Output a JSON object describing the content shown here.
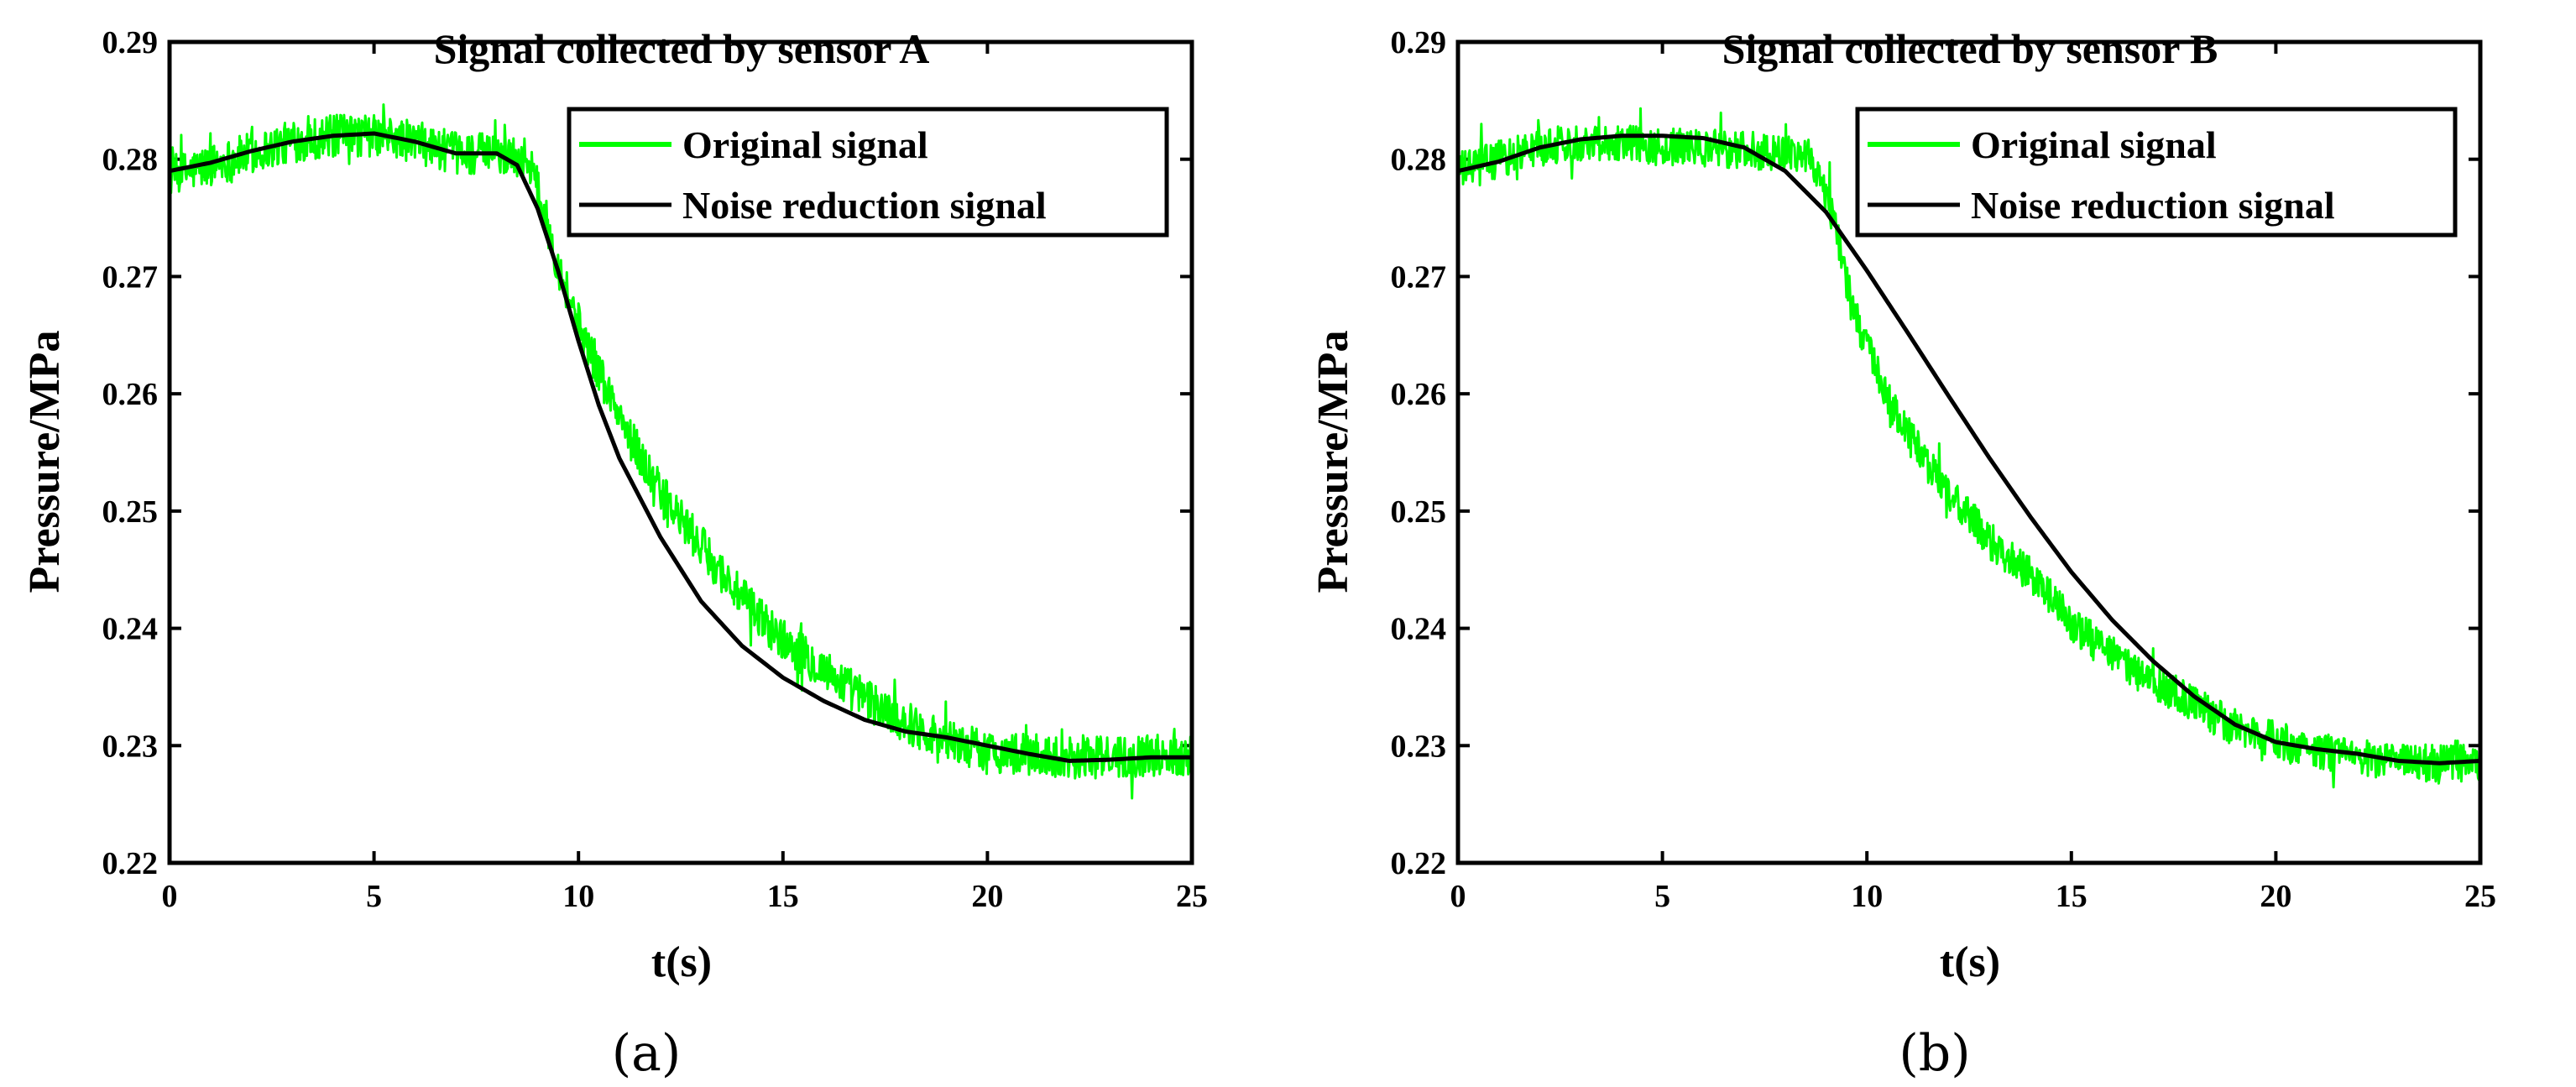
{
  "chart_data": [
    {
      "id": "a",
      "type": "line",
      "title": "Signal collected by sensor A",
      "xlabel": "t(s)",
      "ylabel": "Pressure/MPa",
      "panel_label": "(a)",
      "xlim": [
        0,
        25
      ],
      "ylim": [
        0.22,
        0.29
      ],
      "xticks": [
        0,
        5,
        10,
        15,
        20,
        25
      ],
      "xtick_labels": [
        "0",
        "5",
        "10",
        "15",
        "20",
        "25"
      ],
      "yticks": [
        0.22,
        0.23,
        0.24,
        0.25,
        0.26,
        0.27,
        0.28,
        0.29
      ],
      "ytick_labels": [
        "0.22",
        "0.23",
        "0.24",
        "0.25",
        "0.26",
        "0.27",
        "0.28",
        "0.29"
      ],
      "legend_position": "top-right",
      "series": [
        {
          "name": "Original signal",
          "color": "#00ff00",
          "style": "noisy",
          "noise_amplitude": 0.0018,
          "x": [
            0,
            1,
            2,
            3,
            4,
            5,
            6,
            7,
            8,
            8.8,
            9.5,
            10,
            10.5,
            11,
            12,
            13,
            14,
            15,
            16,
            17,
            18,
            19,
            20,
            21,
            22,
            23,
            24,
            25
          ],
          "y": [
            0.2785,
            0.2795,
            0.2805,
            0.2815,
            0.282,
            0.282,
            0.2815,
            0.2805,
            0.2805,
            0.28,
            0.271,
            0.266,
            0.262,
            0.258,
            0.2515,
            0.247,
            0.2425,
            0.239,
            0.2365,
            0.234,
            0.232,
            0.2305,
            0.2295,
            0.2292,
            0.229,
            0.229,
            0.2292,
            0.2292
          ]
        },
        {
          "name": "Noise reduction signal",
          "color": "#000000",
          "style": "smooth",
          "x": [
            0,
            1,
            2,
            3,
            4,
            5,
            6,
            7,
            8,
            8.5,
            9,
            9.5,
            10,
            10.5,
            11,
            12,
            13,
            14,
            15,
            16,
            17,
            18,
            19,
            20,
            21,
            22,
            23,
            24,
            25
          ],
          "y": [
            0.279,
            0.2797,
            0.2807,
            0.2815,
            0.282,
            0.2822,
            0.2815,
            0.2805,
            0.2805,
            0.2795,
            0.2758,
            0.2705,
            0.2645,
            0.259,
            0.2545,
            0.2478,
            0.2423,
            0.2385,
            0.2358,
            0.2338,
            0.2322,
            0.2312,
            0.2307,
            0.23,
            0.2293,
            0.2287,
            0.2288,
            0.229,
            0.229
          ]
        }
      ]
    },
    {
      "id": "b",
      "type": "line",
      "title": "Signal collected by sensor B",
      "xlabel": "t(s)",
      "ylabel": "Pressure/MPa",
      "panel_label": "(b)",
      "xlim": [
        0,
        25
      ],
      "ylim": [
        0.22,
        0.29
      ],
      "xticks": [
        0,
        5,
        10,
        15,
        20,
        25
      ],
      "xtick_labels": [
        "0",
        "5",
        "10",
        "15",
        "20",
        "25"
      ],
      "yticks": [
        0.22,
        0.23,
        0.24,
        0.25,
        0.26,
        0.27,
        0.28,
        0.29
      ],
      "ytick_labels": [
        "0.22",
        "0.23",
        "0.24",
        "0.25",
        "0.26",
        "0.27",
        "0.28",
        "0.29"
      ],
      "legend_position": "top-right",
      "series": [
        {
          "name": "Original signal",
          "color": "#00ff00",
          "style": "noisy",
          "noise_amplitude": 0.0016,
          "x": [
            0,
            1,
            2,
            3,
            4,
            5,
            6,
            7,
            8,
            8.6,
            9.2,
            9.6,
            10,
            10.5,
            11,
            12,
            13,
            14,
            15,
            16,
            17,
            18,
            19,
            20,
            21,
            22,
            23,
            24,
            25
          ],
          "y": [
            0.279,
            0.28,
            0.281,
            0.2815,
            0.2815,
            0.281,
            0.281,
            0.2808,
            0.2805,
            0.2805,
            0.275,
            0.268,
            0.264,
            0.2595,
            0.2565,
            0.2515,
            0.2475,
            0.2445,
            0.2405,
            0.2375,
            0.2355,
            0.2335,
            0.2315,
            0.2305,
            0.2295,
            0.229,
            0.2285,
            0.2285,
            0.2285
          ]
        },
        {
          "name": "Noise reduction signal",
          "color": "#000000",
          "style": "smooth",
          "x": [
            0,
            1,
            2,
            3,
            4,
            5,
            6,
            7,
            8,
            9,
            10,
            11,
            12,
            13,
            14,
            15,
            16,
            17,
            18,
            19,
            20,
            21,
            22,
            23,
            24,
            25
          ],
          "y": [
            0.279,
            0.2798,
            0.281,
            0.2817,
            0.282,
            0.282,
            0.2818,
            0.281,
            0.279,
            0.2755,
            0.2705,
            0.2652,
            0.2598,
            0.2545,
            0.2495,
            0.2448,
            0.2407,
            0.2372,
            0.2342,
            0.2318,
            0.2303,
            0.2297,
            0.2293,
            0.2287,
            0.2285,
            0.2287
          ]
        }
      ]
    }
  ]
}
